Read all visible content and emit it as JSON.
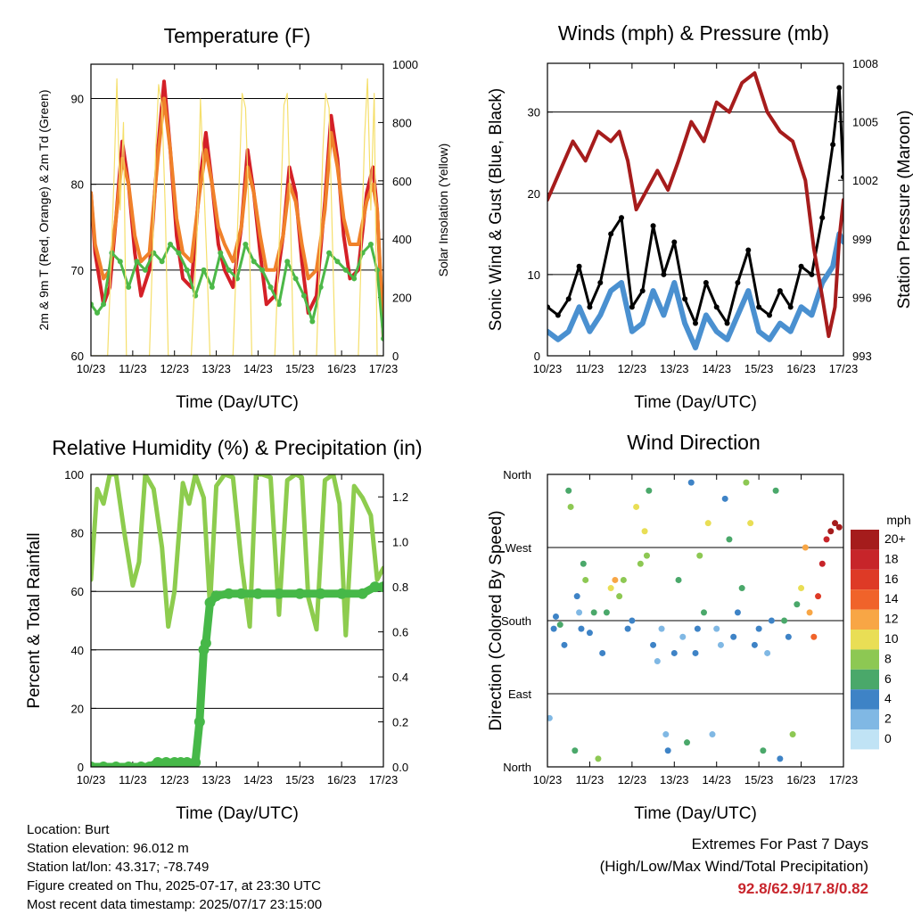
{
  "colors": {
    "t2m": "#d42027",
    "t9m": "#f0812a",
    "td2m": "#4cb848",
    "solar": "#f5df6b",
    "gust": "#000000",
    "wind": "#4a90d0",
    "pressure": "#a61c1c",
    "rh": "#8dcc4e",
    "precip": "#46b848",
    "extremes": "#c8252c"
  },
  "chart_data": [
    {
      "type": "line",
      "title": "Temperature (F)",
      "xlabel": "Time (Day/UTC)",
      "ylabel": "2m & 9m T (Red, Orange) & 2m Td (Green)",
      "ylabel_right": "Solar Insolation (Yellow)",
      "x_ticks": [
        "10/23",
        "11/23",
        "12/23",
        "13/23",
        "14/23",
        "15/23",
        "16/23",
        "17/23"
      ],
      "ylim": [
        60,
        94
      ],
      "y_ticks": [
        60,
        70,
        80,
        90
      ],
      "ylim_right": [
        0,
        1000
      ],
      "y_ticks_right": [
        0,
        200,
        400,
        600,
        800,
        1000
      ],
      "grid": true,
      "series": [
        {
          "key": "t2m",
          "axis": "left",
          "x": [
            0,
            0.1,
            0.3,
            0.45,
            0.6,
            0.75,
            0.9,
            1.05,
            1.2,
            1.4,
            1.6,
            1.75,
            1.9,
            2.05,
            2.2,
            2.4,
            2.6,
            2.75,
            2.9,
            3.05,
            3.2,
            3.4,
            3.6,
            3.75,
            3.9,
            4.05,
            4.2,
            4.4,
            4.6,
            4.75,
            4.9,
            5.05,
            5.2,
            5.4,
            5.6,
            5.75,
            5.9,
            6.05,
            6.2,
            6.4,
            6.6,
            6.75,
            6.85,
            7.0
          ],
          "y": [
            79,
            72,
            66,
            68,
            76,
            85,
            80,
            72,
            67,
            70,
            84,
            92,
            84,
            74,
            69,
            68,
            80,
            86,
            80,
            73,
            70,
            68,
            75,
            84,
            79,
            72,
            66,
            67,
            74,
            82,
            79,
            71,
            65,
            67,
            78,
            88,
            83,
            74,
            69,
            70,
            79,
            82,
            77,
            62
          ]
        },
        {
          "key": "t9m",
          "axis": "left",
          "x": [
            0,
            0.1,
            0.3,
            0.45,
            0.6,
            0.75,
            0.9,
            1.05,
            1.2,
            1.4,
            1.6,
            1.75,
            1.9,
            2.05,
            2.2,
            2.4,
            2.6,
            2.75,
            2.9,
            3.05,
            3.2,
            3.4,
            3.6,
            3.75,
            3.9,
            4.05,
            4.2,
            4.4,
            4.6,
            4.75,
            4.9,
            5.05,
            5.2,
            5.4,
            5.6,
            5.75,
            5.9,
            6.05,
            6.2,
            6.4,
            6.6,
            6.75,
            6.85,
            7.0
          ],
          "y": [
            79,
            73,
            69,
            70,
            76,
            83,
            80,
            74,
            71,
            72,
            83,
            90,
            84,
            76,
            72,
            71,
            79,
            84,
            80,
            75,
            73,
            71,
            75,
            82,
            79,
            74,
            70,
            70,
            74,
            80,
            78,
            73,
            69,
            70,
            77,
            86,
            82,
            76,
            73,
            73,
            78,
            80,
            77,
            63
          ]
        },
        {
          "key": "td2m",
          "axis": "left",
          "x": [
            0,
            0.15,
            0.3,
            0.5,
            0.7,
            0.9,
            1.1,
            1.3,
            1.5,
            1.7,
            1.9,
            2.1,
            2.3,
            2.5,
            2.7,
            2.9,
            3.1,
            3.3,
            3.5,
            3.7,
            3.9,
            4.1,
            4.3,
            4.5,
            4.7,
            4.9,
            5.1,
            5.3,
            5.5,
            5.7,
            5.9,
            6.1,
            6.3,
            6.5,
            6.7,
            6.85,
            7.0
          ],
          "y": [
            66,
            65,
            66,
            72,
            71,
            68,
            71,
            70,
            72,
            71,
            73,
            72,
            70,
            67,
            70,
            68,
            72,
            70,
            69,
            73,
            71,
            70,
            68,
            66,
            71,
            69,
            67,
            64,
            68,
            72,
            71,
            70,
            69,
            72,
            73,
            70,
            62
          ]
        },
        {
          "key": "solar",
          "axis": "right",
          "x": [
            0,
            0.4,
            0.55,
            0.62,
            0.7,
            0.78,
            0.85,
            1.4,
            1.55,
            1.62,
            1.7,
            1.78,
            1.85,
            2.4,
            2.55,
            2.62,
            2.7,
            2.78,
            2.85,
            3.4,
            3.55,
            3.62,
            3.7,
            3.78,
            3.85,
            4.4,
            4.55,
            4.62,
            4.7,
            4.78,
            4.85,
            5.4,
            5.55,
            5.62,
            5.7,
            5.78,
            5.85,
            6.4,
            6.55,
            6.62,
            6.7,
            6.78,
            6.85,
            7.0
          ],
          "y": [
            0,
            0,
            600,
            950,
            500,
            800,
            0,
            0,
            700,
            930,
            850,
            500,
            0,
            0,
            450,
            880,
            600,
            300,
            0,
            0,
            600,
            900,
            850,
            500,
            0,
            0,
            550,
            860,
            900,
            450,
            0,
            0,
            700,
            900,
            850,
            400,
            0,
            0,
            750,
            950,
            500,
            900,
            0,
            0
          ]
        }
      ]
    },
    {
      "type": "line",
      "title": "Winds (mph) & Pressure (mb)",
      "xlabel": "Time (Day/UTC)",
      "ylabel": "Sonic Wind & Gust (Blue, Black)",
      "ylabel_right": "Station Pressure (Maroon)",
      "x_ticks": [
        "10/23",
        "11/23",
        "12/23",
        "13/23",
        "14/23",
        "15/23",
        "16/23",
        "17/23"
      ],
      "ylim": [
        0,
        36
      ],
      "y_ticks": [
        0,
        10,
        20,
        30
      ],
      "ylim_right": [
        993,
        1008
      ],
      "y_ticks_right": [
        993,
        996,
        999,
        1002,
        1005,
        1008
      ],
      "grid": true,
      "series": [
        {
          "key": "gust",
          "axis": "left",
          "x": [
            0,
            0.25,
            0.5,
            0.75,
            1.0,
            1.25,
            1.5,
            1.75,
            2.0,
            2.25,
            2.5,
            2.75,
            3.0,
            3.25,
            3.5,
            3.75,
            4.0,
            4.25,
            4.5,
            4.75,
            5.0,
            5.25,
            5.5,
            5.75,
            6.0,
            6.25,
            6.5,
            6.75,
            6.9,
            7.0
          ],
          "y": [
            6,
            5,
            7,
            11,
            6,
            9,
            15,
            17,
            6,
            8,
            16,
            10,
            14,
            7,
            4,
            9,
            6,
            4,
            9,
            13,
            6,
            5,
            8,
            6,
            11,
            10,
            17,
            26,
            33,
            22
          ]
        },
        {
          "key": "wind",
          "axis": "left",
          "x": [
            0,
            0.25,
            0.5,
            0.75,
            1.0,
            1.25,
            1.5,
            1.75,
            2.0,
            2.25,
            2.5,
            2.75,
            3.0,
            3.25,
            3.5,
            3.75,
            4.0,
            4.25,
            4.5,
            4.75,
            5.0,
            5.25,
            5.5,
            5.75,
            6.0,
            6.25,
            6.5,
            6.75,
            6.9,
            7.0
          ],
          "y": [
            3,
            2,
            3,
            6,
            3,
            5,
            8,
            9,
            3,
            4,
            8,
            5,
            9,
            4,
            1,
            5,
            3,
            2,
            5,
            8,
            3,
            2,
            4,
            3,
            6,
            5,
            9,
            11,
            15,
            14
          ]
        },
        {
          "key": "pressure",
          "axis": "right",
          "x": [
            0,
            0.3,
            0.6,
            0.9,
            1.2,
            1.5,
            1.7,
            1.9,
            2.1,
            2.35,
            2.6,
            2.85,
            3.1,
            3.4,
            3.7,
            4.0,
            4.3,
            4.6,
            4.9,
            5.2,
            5.5,
            5.8,
            6.1,
            6.3,
            6.5,
            6.65,
            6.8,
            6.9,
            7.0
          ],
          "y": [
            1001,
            1002.5,
            1004,
            1003,
            1004.5,
            1004,
            1004.5,
            1003,
            1000.5,
            1001.5,
            1002.5,
            1001.5,
            1003,
            1005,
            1004,
            1006,
            1005.5,
            1007,
            1007.5,
            1005.5,
            1004.5,
            1004,
            1002,
            998.5,
            996,
            994,
            995.5,
            999,
            1001
          ]
        }
      ]
    },
    {
      "type": "line",
      "title": "Relative Humidity (%) & Precipitation (in)",
      "xlabel": "Time (Day/UTC)",
      "ylabel": "Percent & Total Rainfall",
      "x_ticks": [
        "10/23",
        "11/23",
        "12/23",
        "13/23",
        "14/23",
        "15/23",
        "16/23",
        "17/23"
      ],
      "ylim": [
        0,
        100
      ],
      "y_ticks": [
        0,
        20,
        40,
        60,
        80,
        100
      ],
      "ylim_right": [
        0.0,
        1.3
      ],
      "y_ticks_right": [
        "0.0",
        "0.2",
        "0.4",
        "0.6",
        "0.8",
        "1.0",
        "1.2"
      ],
      "grid": true,
      "series": [
        {
          "key": "rh",
          "axis": "left",
          "x": [
            0,
            0.15,
            0.3,
            0.45,
            0.6,
            0.8,
            1.0,
            1.15,
            1.3,
            1.5,
            1.7,
            1.85,
            2.0,
            2.2,
            2.35,
            2.5,
            2.7,
            2.85,
            3.0,
            3.2,
            3.4,
            3.6,
            3.8,
            3.95,
            4.1,
            4.3,
            4.5,
            4.7,
            4.9,
            5.05,
            5.2,
            5.4,
            5.6,
            5.8,
            5.95,
            6.1,
            6.3,
            6.5,
            6.7,
            6.85,
            7.0
          ],
          "y": [
            64,
            95,
            90,
            100,
            100,
            80,
            62,
            70,
            100,
            95,
            75,
            48,
            60,
            97,
            90,
            100,
            92,
            55,
            96,
            100,
            99,
            70,
            48,
            100,
            100,
            99,
            52,
            98,
            100,
            99,
            58,
            47,
            98,
            100,
            90,
            45,
            96,
            92,
            86,
            64,
            68
          ]
        },
        {
          "key": "precip",
          "axis": "right",
          "x": [
            0,
            0.3,
            0.6,
            0.9,
            1.2,
            1.4,
            1.6,
            1.8,
            2.0,
            2.15,
            2.3,
            2.5,
            2.6,
            2.7,
            2.75,
            2.85,
            3.0,
            3.3,
            3.6,
            4.0,
            4.5,
            5.0,
            5.5,
            6.0,
            6.5,
            6.8,
            7.0
          ],
          "y": [
            0.0,
            0.0,
            0.0,
            0.0,
            0.0,
            0.0,
            0.02,
            0.02,
            0.02,
            0.02,
            0.02,
            0.02,
            0.2,
            0.52,
            0.55,
            0.73,
            0.76,
            0.77,
            0.77,
            0.77,
            0.77,
            0.77,
            0.77,
            0.77,
            0.77,
            0.8,
            0.8
          ]
        }
      ]
    },
    {
      "type": "scatter",
      "title": "Wind Direction",
      "xlabel": "Time (Day/UTC)",
      "ylabel": "Direction (Colored By Speed)",
      "x_ticks": [
        "10/23",
        "11/23",
        "12/23",
        "13/23",
        "14/23",
        "15/23",
        "16/23",
        "17/23"
      ],
      "y_ticks": [
        "North",
        "East",
        "South",
        "West",
        "North"
      ],
      "ylim": [
        0,
        360
      ],
      "grid": true,
      "colorbar_title": "mph",
      "colorbar_labels": [
        "20+",
        "18",
        "16",
        "14",
        "12",
        "10",
        "8",
        "6",
        "4",
        "2",
        "0"
      ],
      "colorbar_colors": [
        "#a51c1c",
        "#c7252a",
        "#de3a26",
        "#f0632a",
        "#f8a645",
        "#e9de55",
        "#8dc853",
        "#4aa86a",
        "#3e83c6",
        "#80b8e4",
        "#c0e3f5"
      ],
      "points": {
        "x": [
          0.05,
          0.15,
          0.2,
          0.3,
          0.4,
          0.5,
          0.55,
          0.65,
          0.7,
          0.75,
          0.8,
          0.85,
          0.9,
          1.0,
          1.1,
          1.2,
          1.3,
          1.4,
          1.5,
          1.6,
          1.7,
          1.8,
          1.9,
          2.0,
          2.1,
          2.2,
          2.3,
          2.35,
          2.4,
          2.5,
          2.6,
          2.7,
          2.8,
          2.85,
          3.0,
          3.1,
          3.2,
          3.3,
          3.4,
          3.5,
          3.55,
          3.6,
          3.7,
          3.8,
          3.9,
          4.0,
          4.1,
          4.2,
          4.3,
          4.4,
          4.5,
          4.6,
          4.7,
          4.8,
          4.9,
          5.0,
          5.1,
          5.2,
          5.3,
          5.4,
          5.5,
          5.6,
          5.7,
          5.8,
          5.9,
          6.0,
          6.1,
          6.2,
          6.3,
          6.4,
          6.5,
          6.6,
          6.7,
          6.8,
          6.9
        ],
        "y": [
          60,
          170,
          185,
          175,
          150,
          340,
          320,
          20,
          210,
          190,
          170,
          250,
          230,
          165,
          190,
          10,
          140,
          190,
          220,
          230,
          210,
          230,
          170,
          180,
          320,
          250,
          290,
          260,
          340,
          150,
          130,
          170,
          40,
          20,
          140,
          230,
          160,
          30,
          350,
          140,
          170,
          260,
          190,
          300,
          40,
          170,
          150,
          330,
          280,
          160,
          190,
          220,
          350,
          300,
          150,
          170,
          20,
          140,
          180,
          340,
          10,
          180,
          160,
          40,
          200,
          220,
          270,
          190,
          160,
          210,
          250,
          280,
          290,
          300,
          295
        ],
        "speed": [
          2,
          4,
          3,
          5,
          4,
          6,
          7,
          5,
          3,
          2,
          4,
          6,
          8,
          3,
          5,
          7,
          4,
          6,
          9,
          11,
          8,
          7,
          4,
          3,
          10,
          8,
          9,
          7,
          6,
          3,
          2,
          1,
          1,
          4,
          3,
          5,
          2,
          6,
          3,
          4,
          3,
          8,
          5,
          9,
          2,
          1,
          2,
          4,
          5,
          3,
          4,
          6,
          8,
          10,
          3,
          4,
          5,
          2,
          3,
          6,
          4,
          5,
          3,
          7,
          6,
          9,
          11,
          12,
          14,
          16,
          18,
          17,
          20,
          20,
          19
        ]
      }
    }
  ],
  "footer": {
    "location": "Location: Burt",
    "elevation": "Station elevation: 96.012 m",
    "latlon": "Station lat/lon: 43.317; -78.749",
    "created": "Figure created on Thu, 2025-07-17, at 23:30 UTC",
    "timestamp": "Most recent data timestamp: 2025/07/17 23:15:00",
    "extremes_title": "Extremes For Past 7 Days",
    "extremes_subtitle": "(High/Low/Max Wind/Total Precipitation)",
    "extremes_values": "92.8/62.9/17.8/0.82"
  }
}
